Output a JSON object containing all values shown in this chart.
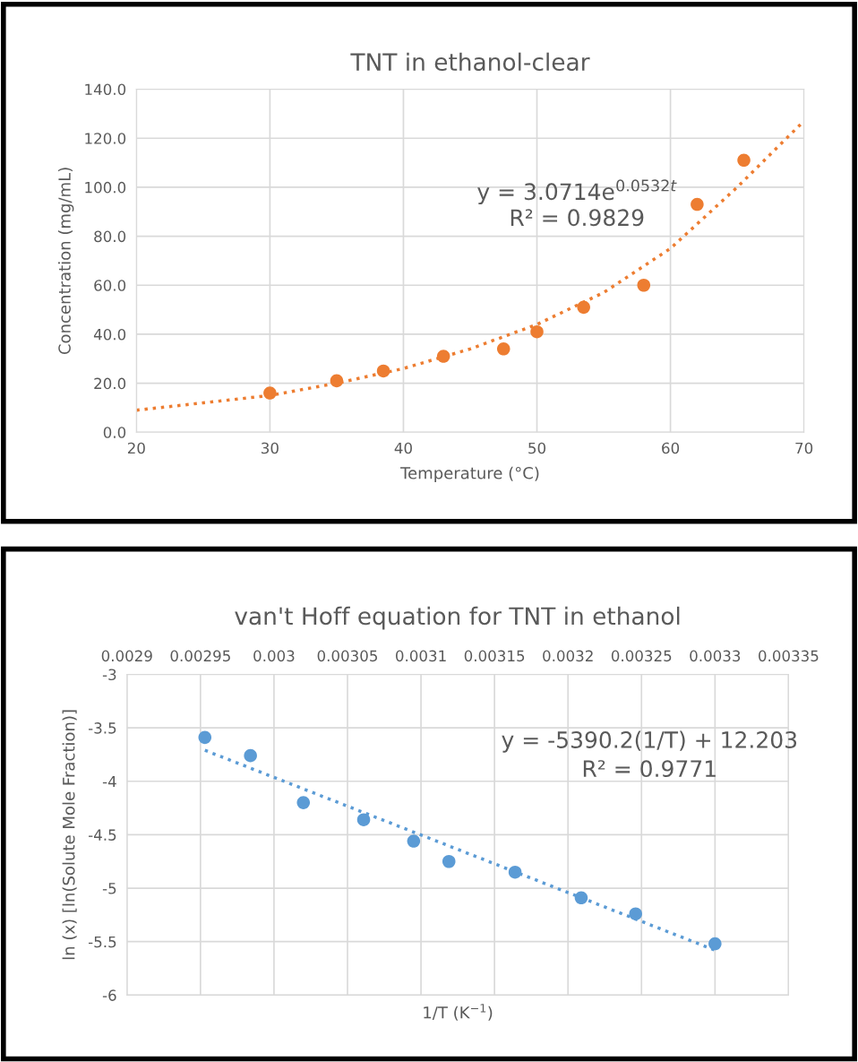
{
  "chart_data": [
    {
      "type": "scatter",
      "title": "TNT in ethanol-clear",
      "xlabel": "Temperature (°C)",
      "ylabel": "Concentration (mg/mL)",
      "xlim": [
        20,
        70
      ],
      "xticks": [
        20,
        30,
        40,
        50,
        60,
        70
      ],
      "ylim": [
        0,
        140
      ],
      "yticks": [
        {
          "value": 0,
          "label": "0.0"
        },
        {
          "value": 20,
          "label": "20.0"
        },
        {
          "value": 40,
          "label": "40.0"
        },
        {
          "value": 60,
          "label": "60.0"
        },
        {
          "value": 80,
          "label": "80.0"
        },
        {
          "value": 100,
          "label": "100.0"
        },
        {
          "value": 120,
          "label": "120.0"
        },
        {
          "value": 140,
          "label": "140.0"
        }
      ],
      "grid": true,
      "series": [
        {
          "marker": "circle",
          "color": "#ed7d31",
          "x": [
            30,
            35,
            38.5,
            43,
            47.5,
            50,
            53.5,
            58,
            62,
            65.5
          ],
          "values": [
            16,
            21,
            25,
            31,
            34,
            41,
            51,
            60,
            93,
            111
          ]
        },
        {
          "type": "line",
          "marker": "none",
          "line_style": "dotted",
          "color": "#ed7d31",
          "x": [
            20,
            25,
            30,
            35,
            40,
            45,
            50,
            55,
            60,
            65,
            70
          ],
          "values": [
            9,
            12,
            15,
            20,
            26,
            34,
            44,
            57,
            75,
            100,
            127
          ]
        }
      ],
      "annotations": [
        "y = 3.0714e$^{0.0532t}$",
        "R² = 0.9829"
      ]
    },
    {
      "type": "scatter",
      "title": "van't Hoff equation for TNT in ethanol",
      "xlabel": "1/T (K$^{−1}$)",
      "ylabel": "ln (x) [ln(Solute Mole Fraction)]",
      "xlim": [
        0.0029,
        0.00335
      ],
      "xticks": [
        0.0029,
        0.00295,
        0.003,
        0.00305,
        0.0031,
        0.00315,
        0.0032,
        0.00325,
        0.0033,
        0.00335
      ],
      "ylim": [
        -6,
        -3
      ],
      "yticks": [
        -6,
        -5.5,
        -5,
        -4.5,
        -4,
        -3.5,
        -3
      ],
      "grid": true,
      "series": [
        {
          "marker": "circle",
          "color": "#5b9bd5",
          "x": [
            0.002953,
            0.002984,
            0.00302,
            0.003061,
            0.003095,
            0.003119,
            0.003164,
            0.003209,
            0.003246,
            0.0033
          ],
          "values": [
            -3.59,
            -3.76,
            -4.2,
            -4.36,
            -4.56,
            -4.75,
            -4.85,
            -5.09,
            -5.24,
            -5.52
          ]
        },
        {
          "type": "line",
          "marker": "none",
          "line_style": "dotted",
          "color": "#5b9bd5",
          "x": [
            0.002953,
            0.0033
          ],
          "values": [
            -3.71,
            -5.58
          ]
        }
      ],
      "annotations": [
        "y = -5390.2(1/T) + 12.203",
        "R² = 0.9771"
      ]
    }
  ]
}
